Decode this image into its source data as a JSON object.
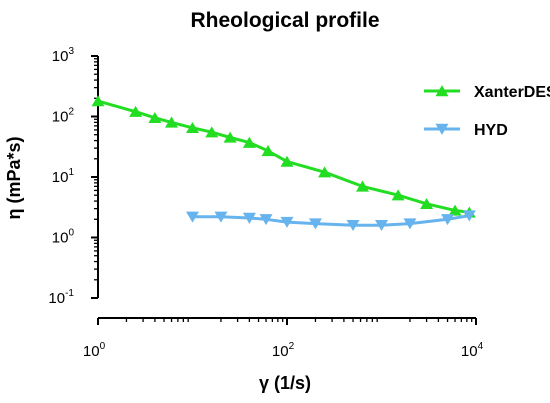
{
  "chart_data": {
    "type": "line",
    "title": "Rheological profile",
    "xlabel": "γ (1/s)",
    "ylabel": "η (mPa*s)",
    "x_scale": "log",
    "y_scale": "log",
    "xlim": [
      1,
      10000
    ],
    "ylim": [
      0.1,
      1000
    ],
    "x_ticks": [
      {
        "value": 1,
        "base": "10",
        "exp": "0"
      },
      {
        "value": 100,
        "base": "10",
        "exp": "2"
      },
      {
        "value": 10000,
        "base": "10",
        "exp": "4"
      }
    ],
    "y_ticks": [
      {
        "value": 1000,
        "base": "10",
        "exp": "3"
      },
      {
        "value": 100,
        "base": "10",
        "exp": "2"
      },
      {
        "value": 10,
        "base": "10",
        "exp": "1"
      },
      {
        "value": 1,
        "base": "10",
        "exp": "0"
      },
      {
        "value": 0.1,
        "base": "10",
        "exp": "-1"
      }
    ],
    "grid": false,
    "legend_position": "top-right",
    "series": [
      {
        "name": "XanterDES",
        "color": "#22dd22",
        "marker": "triangle-up",
        "points": [
          {
            "x": 1,
            "y": 180
          },
          {
            "x": 2.5,
            "y": 120
          },
          {
            "x": 4,
            "y": 95
          },
          {
            "x": 6,
            "y": 80
          },
          {
            "x": 10,
            "y": 65
          },
          {
            "x": 16,
            "y": 55
          },
          {
            "x": 25,
            "y": 45
          },
          {
            "x": 40,
            "y": 37
          },
          {
            "x": 63,
            "y": 27
          },
          {
            "x": 100,
            "y": 18
          },
          {
            "x": 250,
            "y": 12
          },
          {
            "x": 630,
            "y": 7
          },
          {
            "x": 1500,
            "y": 5
          },
          {
            "x": 3000,
            "y": 3.6
          },
          {
            "x": 6000,
            "y": 2.8
          },
          {
            "x": 8500,
            "y": 2.6
          }
        ]
      },
      {
        "name": "HYD",
        "color": "#66b3ee",
        "marker": "triangle-down",
        "points": [
          {
            "x": 10,
            "y": 2.2
          },
          {
            "x": 20,
            "y": 2.2
          },
          {
            "x": 40,
            "y": 2.1
          },
          {
            "x": 60,
            "y": 2.0
          },
          {
            "x": 100,
            "y": 1.8
          },
          {
            "x": 200,
            "y": 1.7
          },
          {
            "x": 500,
            "y": 1.6
          },
          {
            "x": 1000,
            "y": 1.6
          },
          {
            "x": 2000,
            "y": 1.7
          },
          {
            "x": 5000,
            "y": 2.0
          },
          {
            "x": 8500,
            "y": 2.3
          }
        ]
      }
    ]
  }
}
